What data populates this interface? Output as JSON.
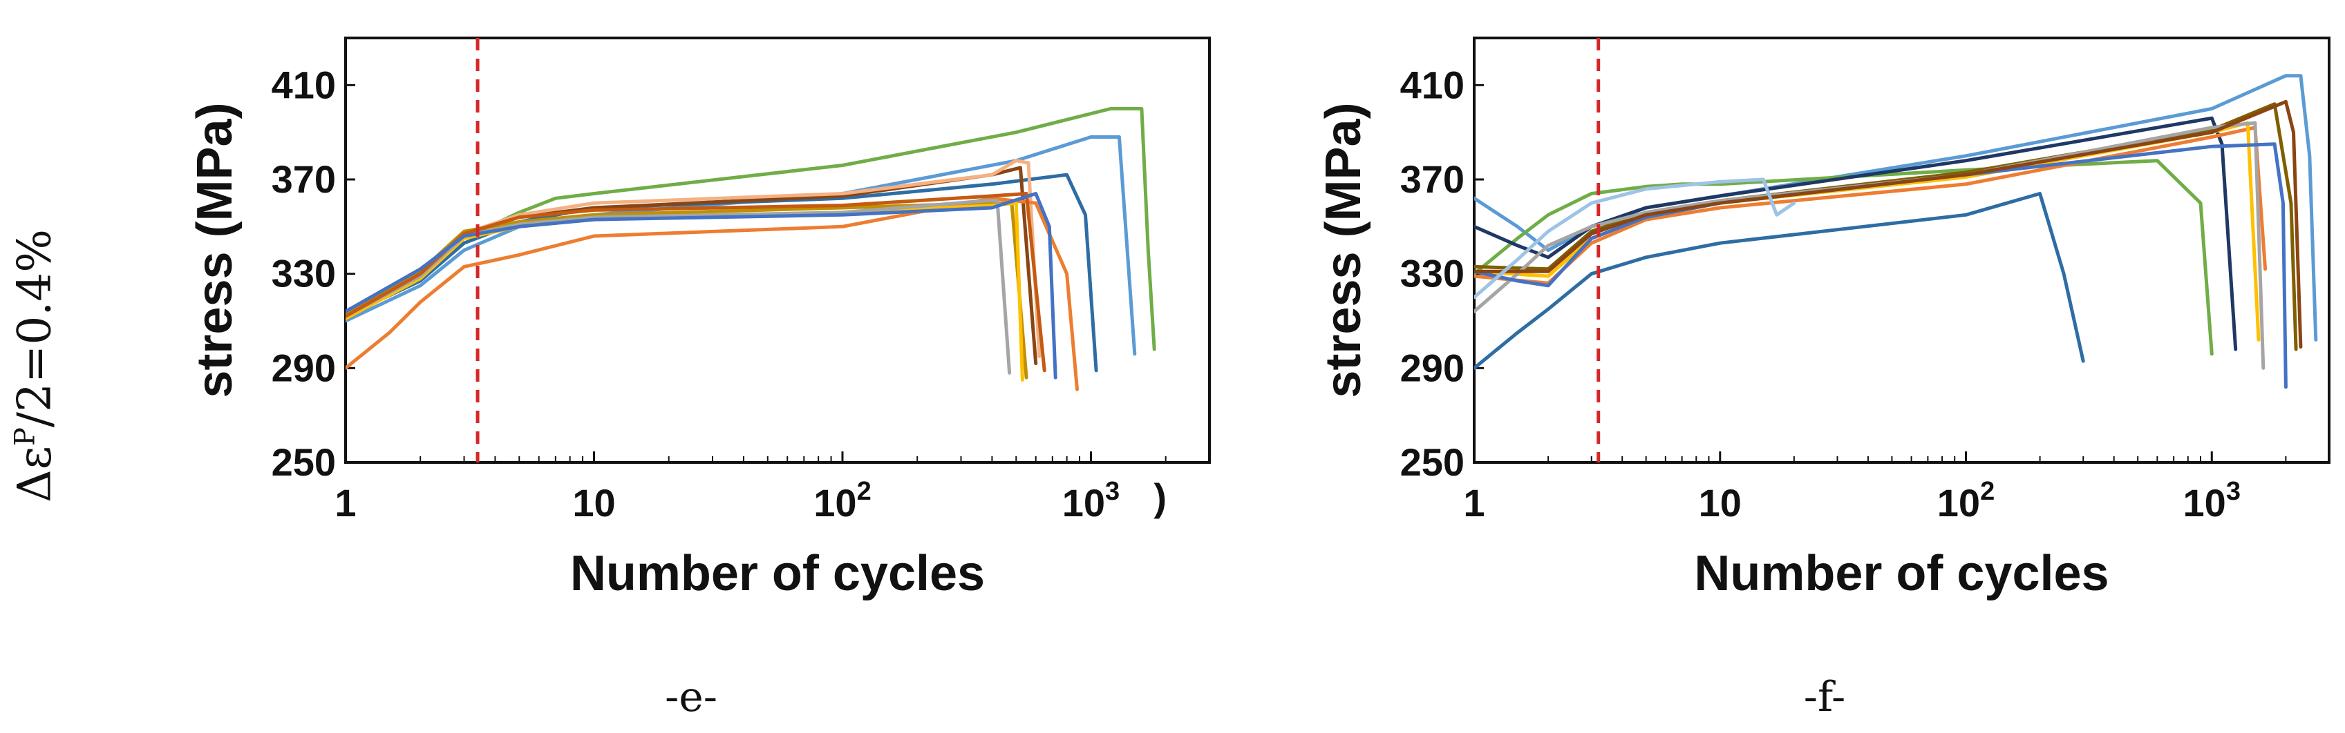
{
  "side_label": {
    "prefix": "Δε",
    "superscript": "P",
    "suffix": "/2=0.4%"
  },
  "chart_data": [
    {
      "type": "line",
      "panel_label": "-e-",
      "xlabel": "Number of cycles",
      "ylabel": "stress (MPa)",
      "xscale": "log",
      "xlim": [
        1,
        3000
      ],
      "ylim": [
        250,
        430
      ],
      "x_ticks": [
        {
          "value": 1,
          "label": "1"
        },
        {
          "value": 10,
          "label": "10"
        },
        {
          "value": 100,
          "label": "10",
          "sup": "2"
        },
        {
          "value": 1000,
          "label": "10",
          "sup": "3"
        }
      ],
      "y_ticks": [
        250,
        290,
        330,
        370,
        410
      ],
      "stray_mark": {
        "text": ")",
        "x": 1900,
        "y": 262
      },
      "marker_line": {
        "x": 3.4,
        "color": "#d62728",
        "style": "dashed"
      },
      "series": [
        {
          "name": "s1",
          "color": "#70ad47",
          "x": [
            1,
            2,
            3,
            5,
            7,
            10,
            100,
            500,
            1200,
            1600,
            1700,
            1800
          ],
          "y": [
            314,
            330,
            345,
            356,
            362,
            364,
            376,
            390,
            400,
            400,
            340,
            298
          ]
        },
        {
          "name": "s2",
          "color": "#5b9bd5",
          "x": [
            1,
            2,
            3,
            5,
            10,
            100,
            500,
            1000,
            1300,
            1500
          ],
          "y": [
            310,
            325,
            340,
            350,
            355,
            364,
            378,
            388,
            388,
            296
          ]
        },
        {
          "name": "s3",
          "color": "#2e6da4",
          "x": [
            1,
            2,
            3,
            5,
            10,
            100,
            400,
            800,
            950,
            1050
          ],
          "y": [
            312,
            327,
            343,
            352,
            358,
            362,
            368,
            372,
            355,
            289
          ]
        },
        {
          "name": "s4",
          "color": "#8b4513",
          "x": [
            1,
            2,
            3,
            5,
            10,
            100,
            400,
            520,
            600
          ],
          "y": [
            313,
            330,
            347,
            354,
            358,
            363,
            372,
            375,
            292
          ]
        },
        {
          "name": "s5",
          "color": "#f4b183",
          "x": [
            1,
            2,
            3,
            5,
            10,
            100,
            400,
            500,
            560,
            620
          ],
          "y": [
            312,
            330,
            347,
            355,
            360,
            364,
            372,
            378,
            377,
            295
          ]
        },
        {
          "name": "s6",
          "color": "#bf9000",
          "x": [
            1,
            2,
            3,
            5,
            10,
            100,
            400,
            480,
            550
          ],
          "y": [
            313,
            331,
            348,
            352,
            355,
            358,
            360,
            360,
            286
          ]
        },
        {
          "name": "s7",
          "color": "#ed7d31",
          "x": [
            1,
            1.5,
            2,
            3,
            5,
            10,
            100,
            400,
            600,
            800,
            880
          ],
          "y": [
            290,
            305,
            318,
            333,
            338,
            346,
            350,
            362,
            360,
            330,
            281
          ]
        },
        {
          "name": "s8",
          "color": "#ffc000",
          "x": [
            1,
            2,
            3,
            5,
            10,
            100,
            400,
            500,
            530
          ],
          "y": [
            311,
            328,
            345,
            350,
            353,
            356,
            359,
            360,
            285
          ]
        },
        {
          "name": "s9",
          "color": "#a5a5a5",
          "x": [
            1,
            2,
            3,
            5,
            10,
            100,
            380,
            420,
            470
          ],
          "y": [
            312,
            329,
            346,
            351,
            354,
            356,
            361,
            361,
            288
          ]
        },
        {
          "name": "s10",
          "color": "#c55a11",
          "x": [
            1,
            2,
            3,
            5,
            10,
            100,
            400,
            550,
            650
          ],
          "y": [
            312,
            330,
            347,
            354,
            357,
            359,
            363,
            364,
            289
          ]
        },
        {
          "name": "s11",
          "color": "#4472c4",
          "x": [
            1,
            2,
            3,
            5,
            10,
            100,
            400,
            600,
            680,
            720
          ],
          "y": [
            314,
            332,
            346,
            350,
            353,
            355,
            358,
            364,
            350,
            286
          ]
        }
      ]
    },
    {
      "type": "line",
      "panel_label": "-f-",
      "xlabel": "Number of cycles",
      "ylabel": "stress (MPa)",
      "xscale": "log",
      "xlim": [
        1,
        3000
      ],
      "ylim": [
        250,
        430
      ],
      "x_ticks": [
        {
          "value": 1,
          "label": "1"
        },
        {
          "value": 10,
          "label": "10"
        },
        {
          "value": 100,
          "label": "10",
          "sup": "2"
        },
        {
          "value": 1000,
          "label": "10",
          "sup": "3"
        }
      ],
      "y_ticks": [
        250,
        290,
        330,
        370,
        410
      ],
      "marker_line": {
        "x": 3.2,
        "color": "#d62728",
        "style": "dashed"
      },
      "series": [
        {
          "name": "s1",
          "color": "#2e6da4",
          "x": [
            1,
            1.5,
            2,
            3,
            5,
            10,
            100,
            200,
            250,
            300
          ],
          "y": [
            290,
            305,
            315,
            330,
            337,
            343,
            355,
            364,
            330,
            293
          ]
        },
        {
          "name": "s2",
          "color": "#5b9bd5",
          "x": [
            1,
            1.5,
            2,
            3,
            5,
            10,
            100,
            1000,
            2000,
            2300,
            2500,
            2650
          ],
          "y": [
            362,
            350,
            340,
            350,
            358,
            363,
            380,
            400,
            414,
            414,
            380,
            302
          ]
        },
        {
          "name": "s3",
          "color": "#70ad47",
          "x": [
            1,
            1.5,
            2,
            3,
            5,
            7,
            10,
            100,
            600,
            900,
            1000
          ],
          "y": [
            330,
            345,
            355,
            364,
            367,
            368,
            368,
            374,
            378,
            360,
            296
          ]
        },
        {
          "name": "s4",
          "color": "#1f3864",
          "x": [
            1,
            1.5,
            2,
            3,
            5,
            10,
            100,
            1000,
            1100,
            1250
          ],
          "y": [
            350,
            342,
            337,
            350,
            358,
            363,
            378,
            396,
            385,
            298
          ]
        },
        {
          "name": "s5",
          "color": "#7f6000",
          "x": [
            1,
            2,
            3,
            5,
            10,
            100,
            1000,
            1800,
            2100,
            2200
          ],
          "y": [
            333,
            332,
            348,
            356,
            361,
            373,
            391,
            402,
            360,
            298
          ]
        },
        {
          "name": "s6",
          "color": "#ed7d31",
          "x": [
            1,
            2,
            3,
            5,
            10,
            100,
            1000,
            1500,
            1650
          ],
          "y": [
            329,
            326,
            343,
            353,
            358,
            368,
            388,
            392,
            332
          ]
        },
        {
          "name": "s7",
          "color": "#ffc000",
          "x": [
            1,
            2,
            3,
            5,
            10,
            100,
            1000,
            1400,
            1550
          ],
          "y": [
            331,
            329,
            345,
            354,
            360,
            371,
            390,
            394,
            302
          ]
        },
        {
          "name": "s8",
          "color": "#a5a5a5",
          "x": [
            1,
            1.5,
            2,
            3,
            5,
            10,
            100,
            1000,
            1500,
            1620
          ],
          "y": [
            314,
            330,
            342,
            350,
            356,
            361,
            372,
            392,
            394,
            290
          ]
        },
        {
          "name": "s9",
          "color": "#4472c4",
          "x": [
            1,
            1.5,
            2,
            3,
            5,
            10,
            100,
            1000,
            1800,
            1950,
            2000
          ],
          "y": [
            331,
            327,
            325,
            345,
            354,
            360,
            372,
            384,
            385,
            360,
            282
          ]
        },
        {
          "name": "s10",
          "color": "#8b4513",
          "x": [
            1,
            2,
            3,
            5,
            10,
            100,
            1000,
            2000,
            2150,
            2300
          ],
          "y": [
            331,
            331,
            347,
            355,
            360,
            372,
            390,
            403,
            390,
            299
          ]
        },
        {
          "name": "s11",
          "color": "#9dc3e6",
          "x": [
            1,
            1.5,
            2,
            3,
            5,
            10,
            15,
            17,
            20
          ],
          "y": [
            320,
            336,
            348,
            360,
            366,
            369,
            370,
            355,
            360
          ]
        }
      ]
    }
  ]
}
